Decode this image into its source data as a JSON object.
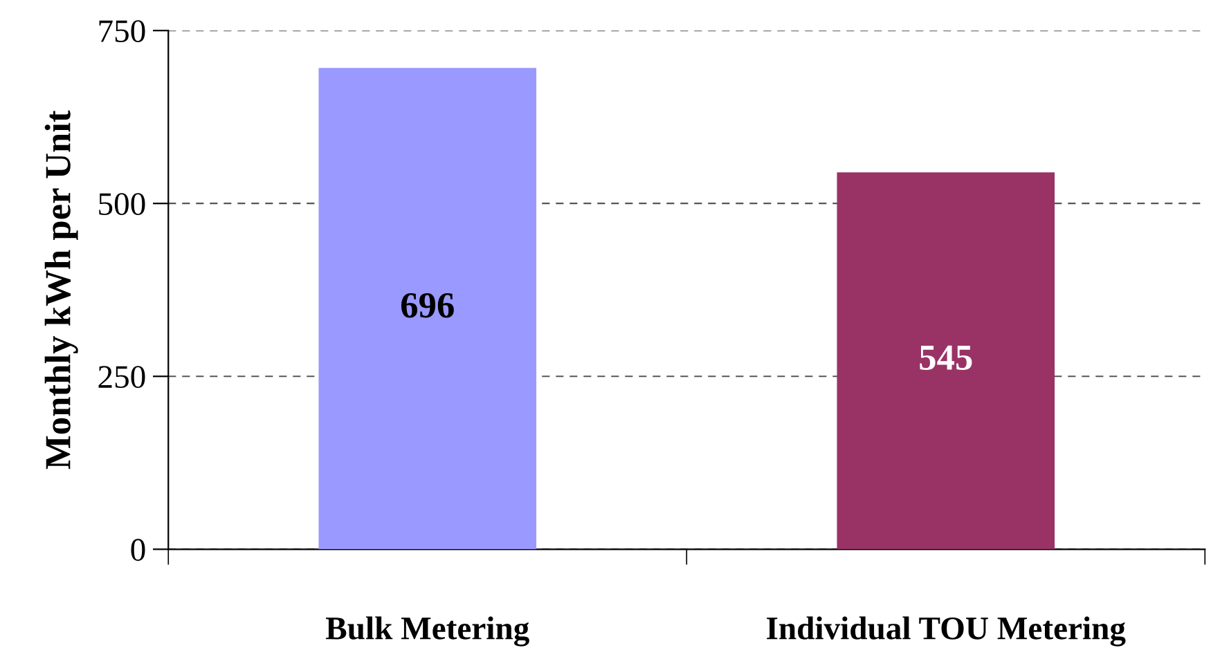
{
  "chart_data": {
    "type": "bar",
    "ylabel": "Monthly kWh per Unit",
    "categories": [
      "Bulk Metering",
      "Individual TOU Metering"
    ],
    "values": [
      696,
      545
    ],
    "colors": [
      "#9999ff",
      "#993366"
    ],
    "ylim": [
      0,
      750
    ],
    "yticks": [
      0,
      250,
      500,
      750
    ],
    "grid": "y",
    "data_labels": true
  }
}
